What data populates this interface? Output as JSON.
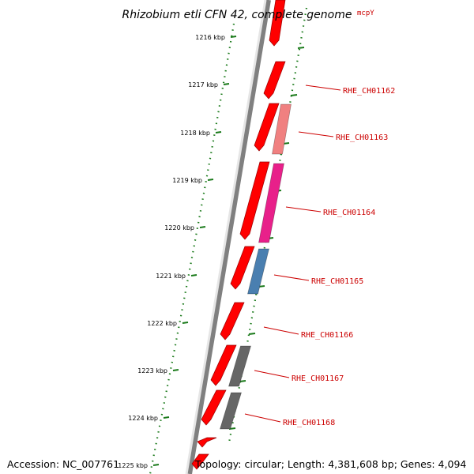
{
  "title": "Rhizobium etli CFN 42, complete genome",
  "top_gene_label": "mcpY",
  "ruler": [
    {
      "label": "1216 kbp"
    },
    {
      "label": "1217 kbp"
    },
    {
      "label": "1218 kbp"
    },
    {
      "label": "1219 kbp"
    },
    {
      "label": "1220 kbp"
    },
    {
      "label": "1221 kbp"
    },
    {
      "label": "1222 kbp"
    },
    {
      "label": "1223 kbp"
    },
    {
      "label": "1224 kbp"
    },
    {
      "label": "1225 kbp"
    }
  ],
  "genes": [
    {
      "label": "RHE_CH01162",
      "color": "#e8202a"
    },
    {
      "label": "RHE_CH01163",
      "color": "#f08080"
    },
    {
      "label": "RHE_CH01164",
      "color": "#e8208a"
    },
    {
      "label": "RHE_CH01165",
      "color": "#4a7fb0"
    },
    {
      "label": "RHE_CH01166",
      "color": "#e8202a"
    },
    {
      "label": "RHE_CH01167",
      "color": "#666666"
    },
    {
      "label": "RHE_CH01168",
      "color": "#666666"
    }
  ],
  "colors": {
    "ruler": "#1a7a1a",
    "backbone": "#808080",
    "cds": "#ff0000",
    "label": "#cc0000"
  },
  "footer": {
    "accession": "Accession: NC_007761",
    "topology": "Topology: circular; Length: 4,381,608 bp; Genes: 4,094"
  }
}
